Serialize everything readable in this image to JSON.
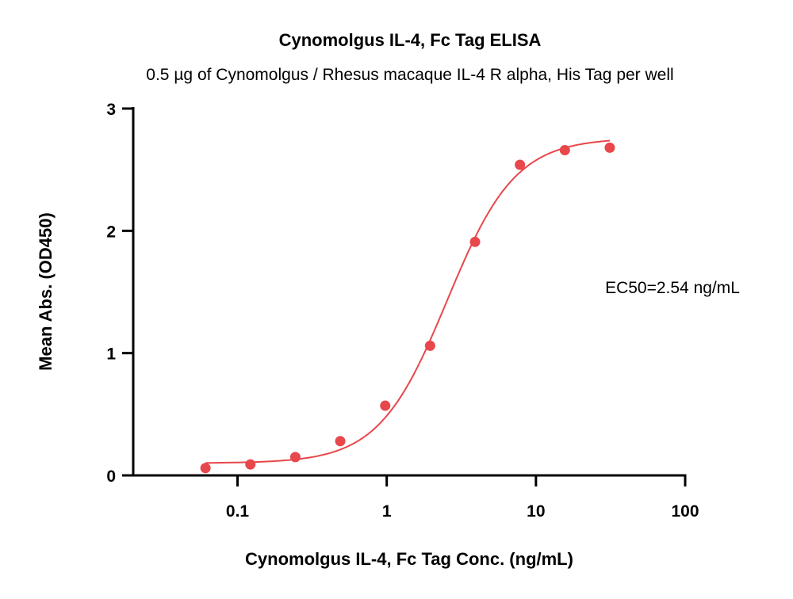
{
  "chart_data": {
    "type": "scatter",
    "title": "Cynomolgus IL-4, Fc Tag ELISA",
    "subtitle": "0.5 µg of Cynomolgus / Rhesus macaque IL-4 R alpha, His Tag per well",
    "xlabel": "Cynomolgus IL-4, Fc Tag Conc. (ng/mL)",
    "ylabel": "Mean Abs. (OD450)",
    "x_scale": "log",
    "xlim": [
      0.02,
      100
    ],
    "ylim": [
      0,
      3
    ],
    "x_ticks": [
      {
        "value": 0.1,
        "label": "0.1"
      },
      {
        "value": 1,
        "label": "1"
      },
      {
        "value": 10,
        "label": "10"
      },
      {
        "value": 100,
        "label": "100"
      }
    ],
    "y_ticks": [
      {
        "value": 0,
        "label": "0"
      },
      {
        "value": 1,
        "label": "1"
      },
      {
        "value": 2,
        "label": "2"
      },
      {
        "value": 3,
        "label": "3"
      }
    ],
    "grid": false,
    "color": "#e8474b",
    "series": [
      {
        "x": [
          0.061,
          0.122,
          0.244,
          0.488,
          0.977,
          1.953,
          3.906,
          7.813,
          15.625,
          31.25
        ],
        "y": [
          0.06,
          0.09,
          0.15,
          0.28,
          0.57,
          1.06,
          1.91,
          2.54,
          2.66,
          2.68
        ]
      }
    ],
    "fit_curve": {
      "model": "4PL",
      "bottom": 0.1,
      "top": 2.76,
      "ec50": 2.54,
      "hill": 1.9,
      "x_range": [
        0.061,
        31.25
      ]
    },
    "annotation": "EC50=2.54 ng/mL"
  }
}
